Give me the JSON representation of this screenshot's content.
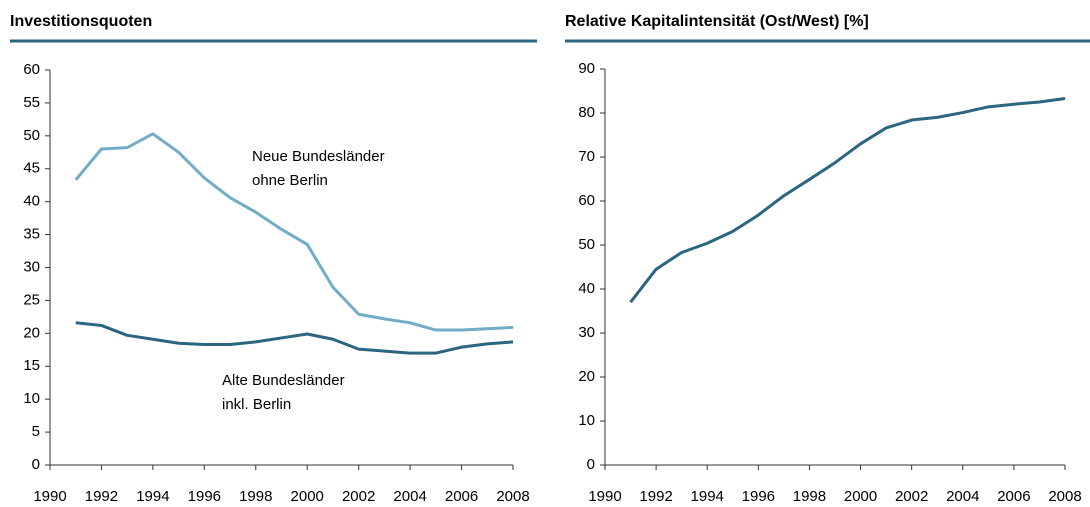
{
  "chart_data": [
    {
      "type": "line",
      "title": "Investitionsquoten",
      "x": [
        1991,
        1992,
        1993,
        1994,
        1995,
        1996,
        1997,
        1998,
        1999,
        2000,
        2001,
        2002,
        2003,
        2004,
        2005,
        2006,
        2007,
        2008
      ],
      "series": [
        {
          "label": [
            "Neue Bundesländer",
            "ohne Berlin"
          ],
          "color": "#72acc6",
          "values": [
            43.3,
            48,
            48.2,
            50.3,
            47.5,
            43.6,
            40.6,
            38.4,
            35.8,
            33.5,
            27,
            22.9,
            22.2,
            21.6,
            20.5,
            20.5,
            20.7,
            20.9
          ]
        },
        {
          "label": [
            "Alte Bundesländer",
            "inkl. Berlin"
          ],
          "color": "#2b6580",
          "values": [
            21.6,
            21.2,
            19.7,
            19.1,
            18.5,
            18.3,
            18.3,
            18.7,
            19.3,
            19.9,
            19.1,
            17.6,
            17.3,
            17,
            17,
            17.9,
            18.4,
            18.7
          ]
        }
      ],
      "xlim": [
        1990,
        2008
      ],
      "xticks": [
        1990,
        1992,
        1994,
        1996,
        1998,
        2000,
        2002,
        2004,
        2006,
        2008
      ],
      "ylim": [
        0,
        60
      ],
      "yticks": [
        0,
        5,
        10,
        15,
        20,
        25,
        30,
        35,
        40,
        45,
        50,
        55,
        60
      ]
    },
    {
      "type": "line",
      "title": "Relative Kapitalintensität (Ost/West) [%]",
      "x": [
        1991,
        1992,
        1993,
        1994,
        1995,
        1996,
        1997,
        1998,
        1999,
        2000,
        2001,
        2002,
        2003,
        2004,
        2005,
        2006,
        2007,
        2008
      ],
      "series": [
        {
          "color": "#2b6580",
          "values": [
            37,
            44.5,
            48.3,
            50.4,
            53.1,
            56.8,
            61.2,
            64.9,
            68.7,
            73,
            76.6,
            78.4,
            79,
            80.1,
            81.4,
            82,
            82.5,
            83.3
          ]
        }
      ],
      "xlim": [
        1990,
        2008
      ],
      "xticks": [
        1990,
        1992,
        1994,
        1996,
        1998,
        2000,
        2002,
        2004,
        2006,
        2008
      ],
      "ylim": [
        0,
        90
      ],
      "yticks": [
        0,
        10,
        20,
        30,
        40,
        50,
        60,
        70,
        80,
        90
      ]
    }
  ]
}
